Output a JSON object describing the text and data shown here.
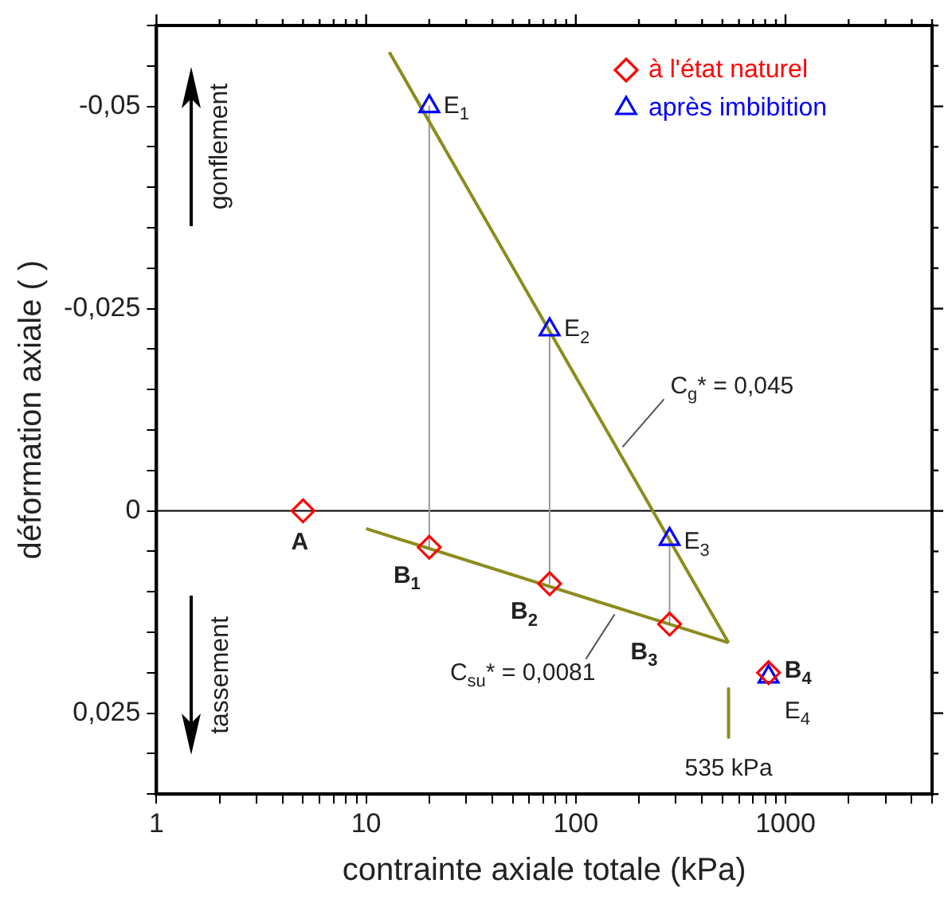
{
  "chart_data": {
    "type": "scatter",
    "xlabel": "contrainte axiale totale (kPa)",
    "ylabel": "déformation axiale ( )",
    "log": "x",
    "grid": false,
    "legend": "top right",
    "xlim": [
      1,
      5000
    ],
    "ylim": [
      0.035,
      -0.06
    ],
    "xticks": [
      1,
      {
        "value": 2,
        "label": null
      },
      {
        "value": 3,
        "label": null
      },
      {
        "value": 4,
        "label": null
      },
      {
        "value": 5,
        "label": null
      },
      {
        "value": 6,
        "label": null
      },
      {
        "value": 7,
        "label": null
      },
      {
        "value": 8,
        "label": null
      },
      {
        "value": 9,
        "label": null
      },
      10,
      {
        "value": 20,
        "label": null
      },
      {
        "value": 30,
        "label": null
      },
      {
        "value": 40,
        "label": null
      },
      {
        "value": 50,
        "label": null
      },
      {
        "value": 60,
        "label": null
      },
      {
        "value": 70,
        "label": null
      },
      {
        "value": 80,
        "label": null
      },
      {
        "value": 90,
        "label": null
      },
      100,
      {
        "value": 200,
        "label": null
      },
      {
        "value": 300,
        "label": null
      },
      {
        "value": 400,
        "label": null
      },
      {
        "value": 500,
        "label": null
      },
      {
        "value": 600,
        "label": null
      },
      {
        "value": 700,
        "label": null
      },
      {
        "value": 800,
        "label": null
      },
      {
        "value": 900,
        "label": null
      },
      1000,
      {
        "value": 2000,
        "label": null
      },
      {
        "value": 3000,
        "label": null
      },
      {
        "value": 4000,
        "label": null
      },
      {
        "value": 5000,
        "label": null
      }
    ],
    "yticks": [
      {
        "value": -0.06,
        "label": null
      },
      {
        "value": -0.055,
        "label": null
      },
      {
        "value": -0.05,
        "label": "-0,05"
      },
      {
        "value": -0.045,
        "label": null
      },
      {
        "value": -0.04,
        "label": null
      },
      {
        "value": -0.035,
        "label": null
      },
      {
        "value": -0.03,
        "label": null
      },
      {
        "value": -0.025,
        "label": "-0,025"
      },
      {
        "value": -0.02,
        "label": null
      },
      {
        "value": -0.015,
        "label": null
      },
      {
        "value": -0.01,
        "label": null
      },
      {
        "value": -0.005,
        "label": null
      },
      {
        "value": 0,
        "label": "0"
      },
      {
        "value": 0.005,
        "label": null
      },
      {
        "value": 0.01,
        "label": null
      },
      {
        "value": 0.015,
        "label": null
      },
      {
        "value": 0.02,
        "label": null
      },
      {
        "value": 0.025,
        "label": "0,025"
      },
      {
        "value": 0.03,
        "label": null
      },
      {
        "value": 0.035,
        "label": null
      }
    ],
    "ref_lines": [
      {
        "axis": "y",
        "value": 0,
        "color": "#000000"
      }
    ],
    "series": [
      {
        "name": "à l'état naturel",
        "type": "scatter",
        "marker": "diamond",
        "color": "#ff0000",
        "x": [
          5,
          20,
          75,
          280,
          830
        ],
        "values": [
          0,
          0.0045,
          0.009,
          0.014,
          0.02
        ]
      },
      {
        "name": "après imbibition",
        "type": "scatter",
        "marker": "triangle",
        "color": "#0000ff",
        "x": [
          20,
          75,
          280,
          830
        ],
        "values": [
          -0.05,
          -0.0224,
          0.0035,
          0.0205
        ]
      },
      {
        "type": "line",
        "color": "#8c8c1e",
        "x": [
          12.9,
          535
        ],
        "values": [
          -0.0567,
          0.0163
        ]
      },
      {
        "type": "line",
        "color": "#8c8c1e",
        "x": [
          10,
          535
        ],
        "values": [
          0.0022,
          0.0163
        ]
      },
      {
        "type": "line",
        "color": "#999999",
        "x": [
          20,
          20
        ],
        "values": [
          -0.05,
          0.0045
        ]
      },
      {
        "type": "line",
        "color": "#999999",
        "x": [
          75,
          75
        ],
        "values": [
          -0.0224,
          0.009
        ]
      },
      {
        "type": "line",
        "color": "#999999",
        "x": [
          280,
          280
        ],
        "values": [
          0.0035,
          0.014
        ]
      },
      {
        "type": "line",
        "color": "#8c8c1e",
        "x": [
          535,
          535
        ],
        "values": [
          0.022,
          0.028
        ]
      }
    ],
    "annotations": [
      "gonflement",
      "tassement",
      {
        "text": "A",
        "x": 5,
        "y": 0
      },
      {
        "text": "B$_{1}$",
        "x": 20,
        "y": 0.0045
      },
      {
        "text": "B$_{2}$",
        "x": 75,
        "y": 0.009
      },
      {
        "text": "B$_{3}$",
        "x": 280,
        "y": 0.014
      },
      {
        "text": "B$_{4}$",
        "x": 830,
        "y": 0.02
      },
      {
        "text": "E$_{1}$",
        "x": 20,
        "y": -0.05
      },
      {
        "text": "E$_{2}$",
        "x": 75,
        "y": -0.0224
      },
      {
        "text": "E$_{3}$",
        "x": 280,
        "y": 0.0035
      },
      {
        "text": "E$_{4}$",
        "x": 830,
        "y": 0.0205
      },
      {
        "text": "C$_{g}$* = 0,045",
        "x": 167,
        "y": -0.0079
      },
      {
        "text": "C$_{su}$* = 0,0081",
        "x": 153,
        "y": 0.0128
      },
      {
        "text": "535 kPa",
        "x": 535,
        "y": 0.028
      }
    ]
  }
}
